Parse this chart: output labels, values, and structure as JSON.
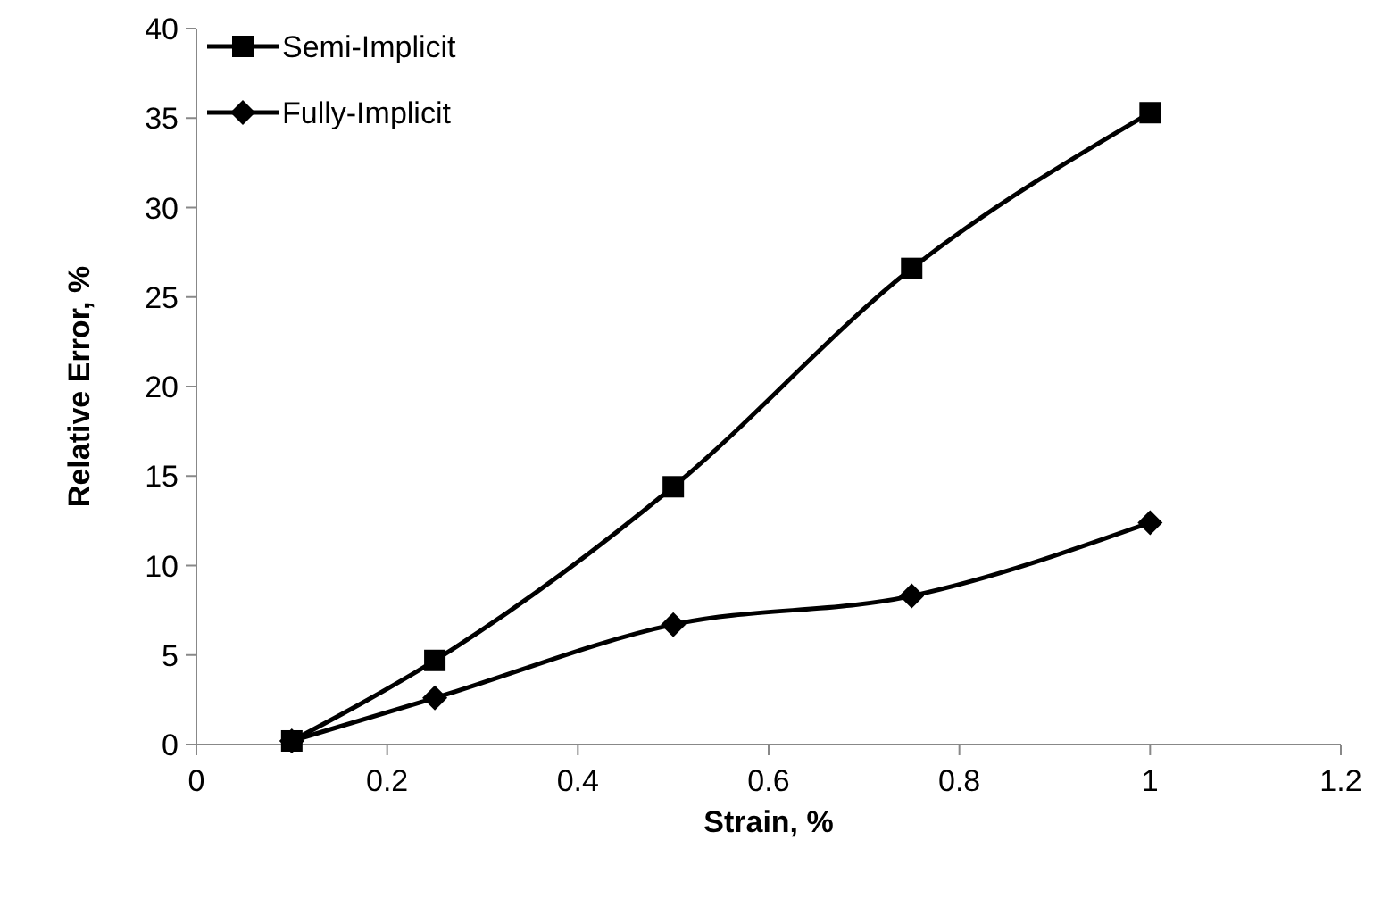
{
  "chart_data": {
    "type": "line",
    "xlabel": "Strain, %",
    "ylabel": "Relative Error, %",
    "xlim": [
      0,
      1.2
    ],
    "xticks": [
      0,
      0.2,
      0.4,
      0.6,
      0.8,
      1,
      1.2
    ],
    "ylim": [
      0,
      40
    ],
    "yticks": [
      0,
      5,
      10,
      15,
      20,
      25,
      30,
      35,
      40
    ],
    "grid": false,
    "legend": "top left",
    "line_style": "solid",
    "series": [
      {
        "name": "Semi-Implicit",
        "color": "#000000",
        "marker": "square",
        "x": [
          0.1,
          0.25,
          0.5,
          0.75,
          1
        ],
        "values": [
          0.2,
          4.7,
          14.4,
          26.6,
          35.3
        ]
      },
      {
        "name": "Fully-Implicit",
        "color": "#000000",
        "marker": "diamond",
        "x": [
          0.1,
          0.25,
          0.5,
          0.75,
          1
        ],
        "values": [
          0.2,
          2.6,
          6.7,
          8.3,
          12.4
        ]
      }
    ]
  }
}
